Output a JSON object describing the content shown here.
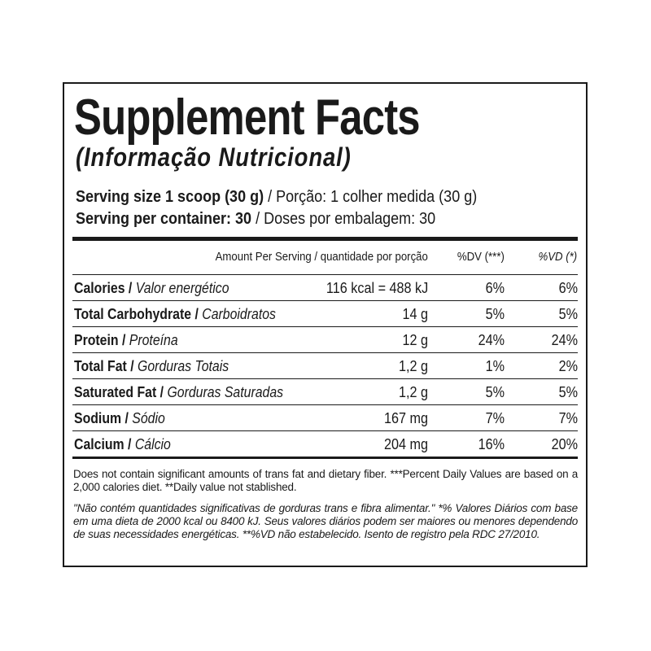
{
  "title": "Supplement Facts",
  "subtitle": "(Informação Nutricional)",
  "serving": [
    {
      "bold": "Serving size 1 scoop (30 g)",
      "regular": " / Porção: 1 colher medida (30 g)"
    },
    {
      "bold": "Serving per container: 30",
      "regular": " / Doses por embalagem: 30"
    }
  ],
  "table": {
    "header": {
      "amount": "Amount Per Serving / quantidade por porção",
      "dv": "%DV (***)",
      "vd": "%VD (*)"
    },
    "rows": [
      {
        "name": "Calories /",
        "name_pt": "Valor energético",
        "amount": "116 kcal = 488 kJ",
        "dv": "6%",
        "vd": "6%"
      },
      {
        "name": "Total Carbohydrate /",
        "name_pt": "Carboidratos",
        "amount": "14 g",
        "dv": "5%",
        "vd": "5%"
      },
      {
        "name": "Protein /",
        "name_pt": "Proteína",
        "amount": "12 g",
        "dv": "24%",
        "vd": "24%"
      },
      {
        "name": "Total Fat /",
        "name_pt": "Gorduras Totais",
        "amount": "1,2 g",
        "dv": "1%",
        "vd": "2%"
      },
      {
        "name": "Saturated Fat /",
        "name_pt": "Gorduras Saturadas",
        "amount": "1,2 g",
        "dv": "5%",
        "vd": "5%"
      },
      {
        "name": "Sodium /",
        "name_pt": "Sódio",
        "amount": "167 mg",
        "dv": "7%",
        "vd": "7%"
      },
      {
        "name": "Calcium /",
        "name_pt": "Cálcio",
        "amount": "204 mg",
        "dv": "16%",
        "vd": "20%"
      }
    ]
  },
  "footnotes": [
    "Does not contain significant amounts of trans fat and dietary fiber. ***Percent Daily Values are based on a 2,000 calories diet. **Daily value not stablished.",
    "\"Não contém quantidades significativas de gorduras trans e fibra alimentar.\" *% Valores Diários com base em uma dieta de 2000 kcal ou 8400 kJ. Seus valores diários podem ser maiores ou menores dependendo de suas necessidades energéticas. **%VD não estabelecido. Isento de registro pela RDC 27/2010."
  ]
}
